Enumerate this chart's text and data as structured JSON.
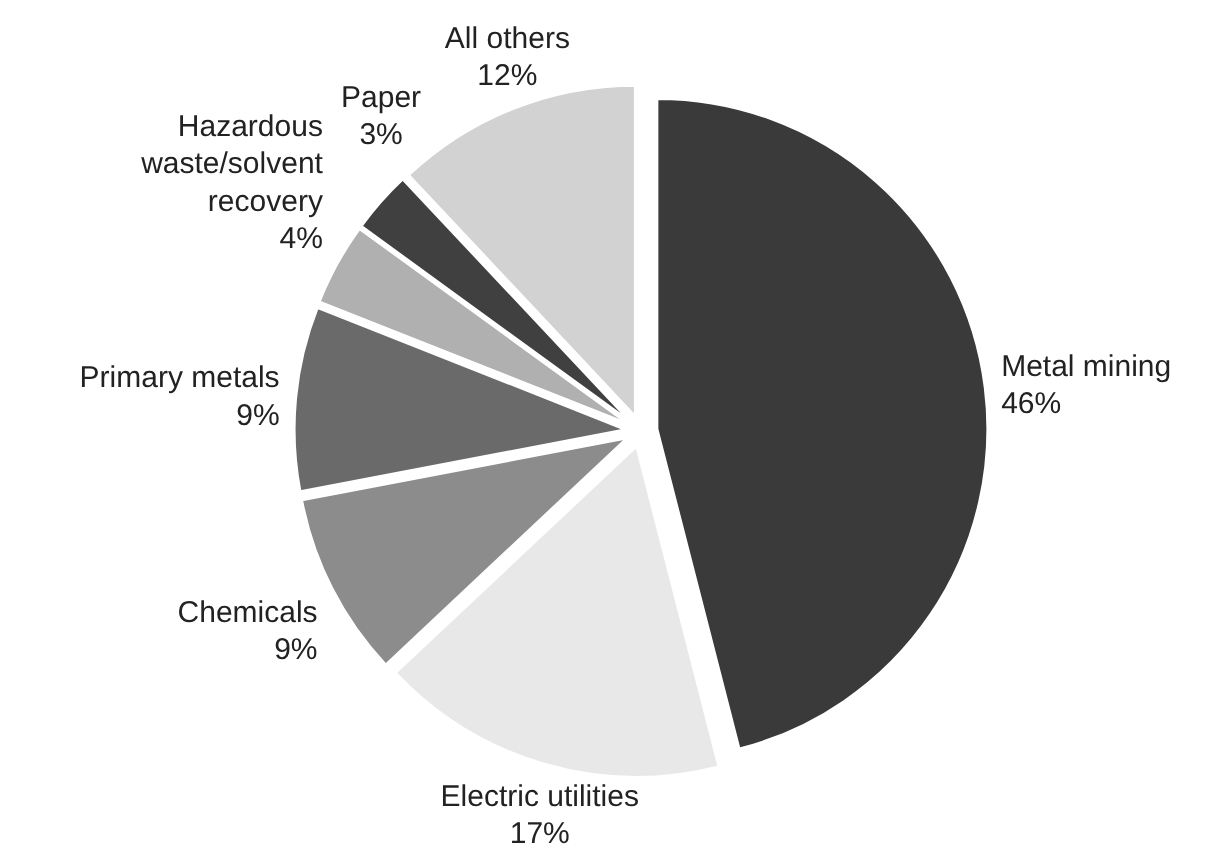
{
  "chart_data": {
    "type": "pie",
    "categories": [
      "Metal mining",
      "Electric utilities",
      "Chemicals",
      "Primary metals",
      "Hazardous waste/solvent recovery",
      "Paper",
      "All others"
    ],
    "values": [
      46,
      17,
      9,
      9,
      4,
      3,
      12
    ],
    "value_labels": [
      "46%",
      "17%",
      "9%",
      "9%",
      "4%",
      "3%",
      "12%"
    ],
    "colors": [
      "#3a3a3a",
      "#e8e8e8",
      "#8c8c8c",
      "#6a6a6a",
      "#b0b0b0",
      "#404040",
      "#d2d2d2"
    ]
  }
}
